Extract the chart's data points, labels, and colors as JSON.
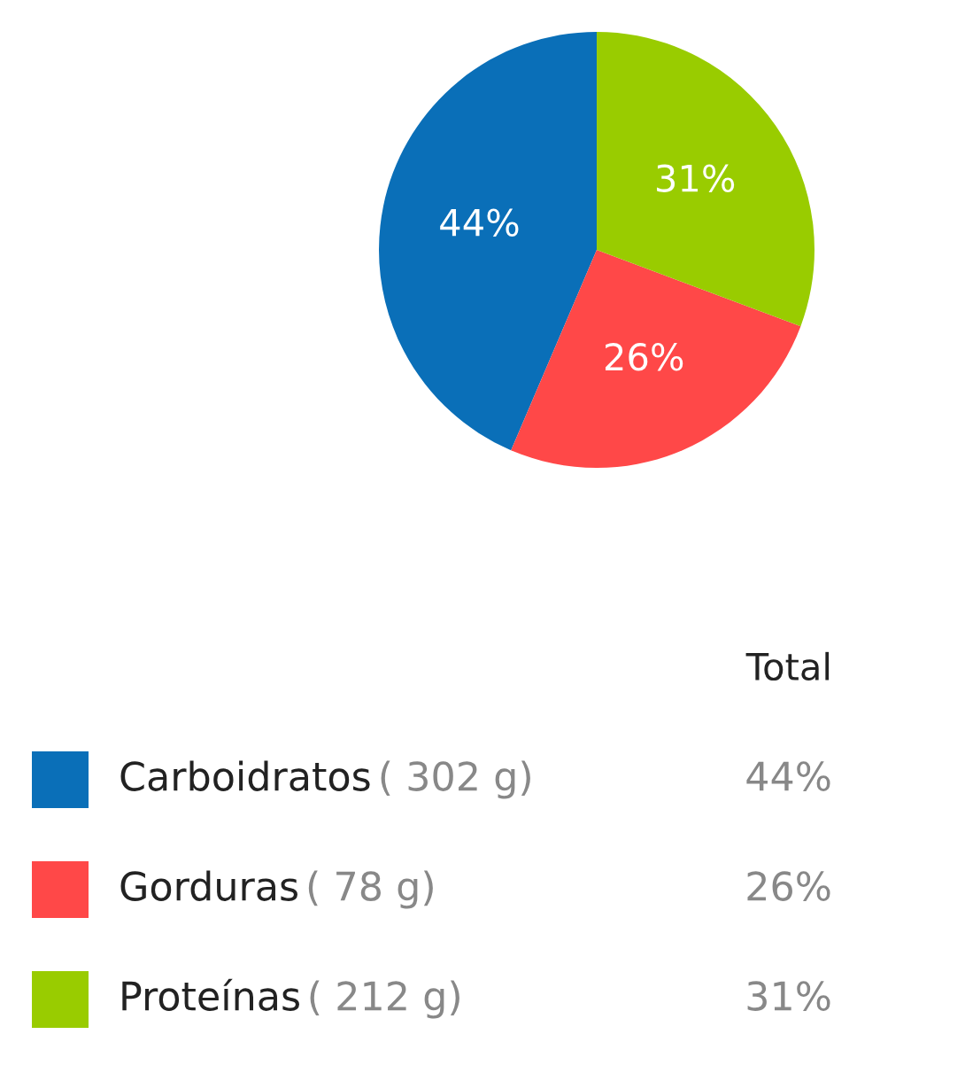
{
  "chart_data": {
    "type": "pie",
    "categories": [
      "Carboidratos",
      "Gorduras",
      "Proteínas"
    ],
    "values": [
      44,
      26,
      31
    ],
    "colors": [
      "#0a6fb8",
      "#ff4848",
      "#99cc00"
    ],
    "value_labels": [
      "44%",
      "26%",
      "31%"
    ],
    "annotations": [
      "Total",
      "( 302 g)",
      "( 78 g)",
      "( 212 g)"
    ],
    "legend": "bottom"
  }
}
